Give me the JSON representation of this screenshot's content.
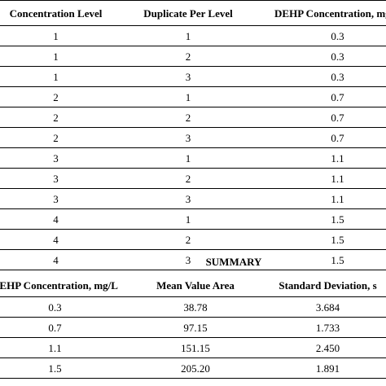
{
  "upper_table": {
    "headers": [
      "Concentration Level",
      "Duplicate Per Level",
      "DEHP Concentration, mg/L"
    ],
    "rows": [
      [
        "1",
        "1",
        "0.3"
      ],
      [
        "1",
        "2",
        "0.3"
      ],
      [
        "1",
        "3",
        "0.3"
      ],
      [
        "2",
        "1",
        "0.7"
      ],
      [
        "2",
        "2",
        "0.7"
      ],
      [
        "2",
        "3",
        "0.7"
      ],
      [
        "3",
        "1",
        "1.1"
      ],
      [
        "3",
        "2",
        "1.1"
      ],
      [
        "3",
        "3",
        "1.1"
      ],
      [
        "4",
        "1",
        "1.5"
      ],
      [
        "4",
        "2",
        "1.5"
      ],
      [
        "4",
        "3",
        "1.5"
      ]
    ]
  },
  "summary": {
    "title": "SUMMARY",
    "headers": [
      "DEHP Concentration, mg/L",
      "Mean Value Area",
      "Standard Deviation, s"
    ],
    "rows": [
      [
        "0.3",
        "38.78",
        "3.684"
      ],
      [
        "0.7",
        "97.15",
        "1.733"
      ],
      [
        "1.1",
        "151.15",
        "2.450"
      ],
      [
        "1.5",
        "205.20",
        "1.891"
      ]
    ]
  }
}
